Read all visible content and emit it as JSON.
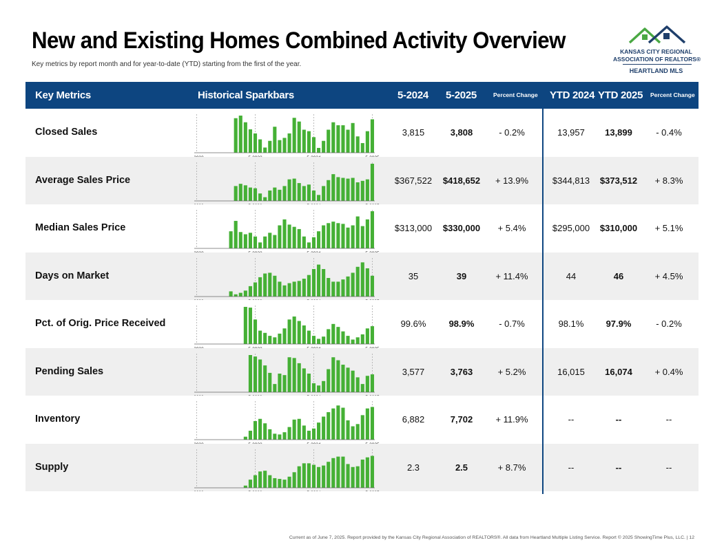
{
  "header": {
    "title": "New and Existing Homes Combined Activity Overview",
    "subtitle": "Key metrics by report month and for year-to-date (YTD) starting from the first of the year."
  },
  "logo": {
    "line1": "KANSAS CITY REGIONAL",
    "line2": "ASSOCIATION OF REALTORS®",
    "line3": "HEARTLAND MLS"
  },
  "columns": {
    "metrics": "Key Metrics",
    "sparkbars": "Historical Sparkbars",
    "m2024": "5-2024",
    "m2025": "5-2025",
    "pct": "Percent Change",
    "ytd2024": "YTD 2024",
    "ytd2025": "YTD 2025",
    "ytdpct": "Percent Change"
  },
  "rows": [
    {
      "label": "Closed Sales",
      "v2024": "3,815",
      "v2025": "3,808",
      "pct": "- 0.2%",
      "ytd2024": "13,957",
      "ytd2025": "13,899",
      "ytdpct": "- 0.4%"
    },
    {
      "label": "Average Sales Price",
      "v2024": "$367,522",
      "v2025": "$418,652",
      "pct": "+ 13.9%",
      "ytd2024": "$344,813",
      "ytd2025": "$373,512",
      "ytdpct": "+ 8.3%"
    },
    {
      "label": "Median Sales Price",
      "v2024": "$313,000",
      "v2025": "$330,000",
      "pct": "+ 5.4%",
      "ytd2024": "$295,000",
      "ytd2025": "$310,000",
      "ytdpct": "+ 5.1%"
    },
    {
      "label": "Days on Market",
      "v2024": "35",
      "v2025": "39",
      "pct": "+ 11.4%",
      "ytd2024": "44",
      "ytd2025": "46",
      "ytdpct": "+ 4.5%"
    },
    {
      "label": "Pct. of Orig. Price Received",
      "v2024": "99.6%",
      "v2025": "98.9%",
      "pct": "- 0.7%",
      "ytd2024": "98.1%",
      "ytd2025": "97.9%",
      "ytdpct": "- 0.2%"
    },
    {
      "label": "Pending Sales",
      "v2024": "3,577",
      "v2025": "3,763",
      "pct": "+ 5.2%",
      "ytd2024": "16,015",
      "ytd2025": "16,074",
      "ytdpct": "+ 0.4%"
    },
    {
      "label": "Inventory",
      "v2024": "6,882",
      "v2025": "7,702",
      "pct": "+ 11.9%",
      "ytd2024": "--",
      "ytd2025": "--",
      "ytdpct": "--"
    },
    {
      "label": "Supply",
      "v2024": "2.3",
      "v2025": "2.5",
      "pct": "+ 8.7%",
      "ytd2024": "--",
      "ytd2025": "--",
      "ytdpct": "--"
    }
  ],
  "chart_data": {
    "type": "bar",
    "colors": {
      "bar": "#45b035",
      "marker": "#aaaaaa",
      "axis": "#666666",
      "header_bg": "#0d4580"
    },
    "tick_labels": [
      "5-2022",
      "5-2023",
      "5-2024",
      "5-2025"
    ],
    "tick_positions": [
      0,
      12,
      24,
      36
    ],
    "sparkbars": [
      [
        0.93,
        1.0,
        0.82,
        0.63,
        0.52,
        0.36,
        0.14,
        0.32,
        0.7,
        0.34,
        0.4,
        0.52,
        0.94,
        0.84,
        0.62,
        0.58,
        0.42,
        0.13,
        0.32,
        0.62,
        0.82,
        0.74,
        0.74,
        0.62,
        0.8,
        0.44,
        0.26,
        0.58,
        0.9
      ],
      [
        0.4,
        0.46,
        0.42,
        0.36,
        0.34,
        0.2,
        0.1,
        0.28,
        0.36,
        0.3,
        0.4,
        0.58,
        0.6,
        0.48,
        0.4,
        0.44,
        0.28,
        0.16,
        0.4,
        0.56,
        0.72,
        0.64,
        0.62,
        0.6,
        0.62,
        0.5,
        0.54,
        0.58,
        1.0
      ],
      [
        0.46,
        0.74,
        0.44,
        0.38,
        0.42,
        0.32,
        0.16,
        0.32,
        0.42,
        0.36,
        0.62,
        0.78,
        0.64,
        0.58,
        0.52,
        0.32,
        0.16,
        0.3,
        0.46,
        0.62,
        0.68,
        0.72,
        0.68,
        0.66,
        0.56,
        0.62,
        0.86,
        0.6,
        0.78,
        1.0
      ],
      [
        0.14,
        0.06,
        0.1,
        0.16,
        0.28,
        0.38,
        0.52,
        0.62,
        0.64,
        0.56,
        0.4,
        0.3,
        0.36,
        0.4,
        0.42,
        0.48,
        0.58,
        0.74,
        0.86,
        0.74,
        0.5,
        0.4,
        0.4,
        0.46,
        0.54,
        0.64,
        0.8,
        0.92,
        0.76,
        0.56
      ],
      [
        1.0,
        0.98,
        0.66,
        0.36,
        0.3,
        0.22,
        0.18,
        0.28,
        0.42,
        0.66,
        0.74,
        0.62,
        0.5,
        0.36,
        0.22,
        0.14,
        0.2,
        0.4,
        0.54,
        0.46,
        0.34,
        0.22,
        0.12,
        0.18,
        0.26,
        0.42,
        0.48
      ],
      [
        1.0,
        0.96,
        0.88,
        0.72,
        0.52,
        0.22,
        0.5,
        0.46,
        0.94,
        0.92,
        0.78,
        0.64,
        0.5,
        0.24,
        0.18,
        0.3,
        0.62,
        0.94,
        0.86,
        0.74,
        0.66,
        0.58,
        0.4,
        0.22,
        0.44,
        0.48
      ],
      [
        0.08,
        0.24,
        0.5,
        0.56,
        0.44,
        0.28,
        0.16,
        0.14,
        0.2,
        0.34,
        0.54,
        0.56,
        0.38,
        0.24,
        0.3,
        0.46,
        0.62,
        0.74,
        0.84,
        0.92,
        0.86,
        0.52,
        0.36,
        0.42,
        0.66,
        0.84,
        0.88
      ],
      [
        0.06,
        0.22,
        0.34,
        0.44,
        0.46,
        0.34,
        0.26,
        0.24,
        0.22,
        0.3,
        0.42,
        0.58,
        0.66,
        0.66,
        0.62,
        0.56,
        0.6,
        0.7,
        0.8,
        0.84,
        0.84,
        0.64,
        0.56,
        0.58,
        0.76,
        0.82,
        0.86
      ]
    ]
  },
  "footer": {
    "text": "Current as of June 7, 2025.  Report provided by the Kansas City Regional Association of REALTORS®. All data from Heartland Multiple Listing Service. Report © 2025 ShowingTime Plus, LLC.  |  12"
  }
}
